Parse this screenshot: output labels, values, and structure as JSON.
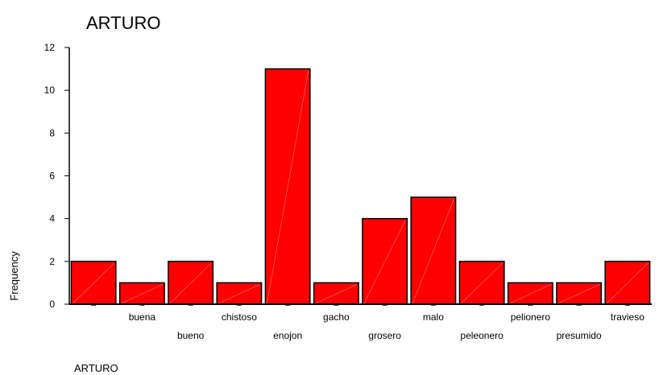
{
  "chart_data": {
    "type": "bar",
    "title": "ARTURO",
    "xlabel": "ARTURO",
    "ylabel": "Frequency",
    "ylim": [
      0,
      12
    ],
    "yticks": [
      0,
      2,
      4,
      6,
      8,
      10,
      12
    ],
    "grid": false,
    "categories": [
      "",
      "buena",
      "bueno",
      "chistoso",
      "enojon",
      "gacho",
      "grosero",
      "malo",
      "peleonero",
      "pelionero",
      "presumido",
      "travieso"
    ],
    "values": [
      2,
      1,
      2,
      1,
      11,
      1,
      4,
      5,
      2,
      1,
      1,
      2
    ],
    "bar_color": "#ff0000",
    "bar_stroke": "#000000"
  }
}
